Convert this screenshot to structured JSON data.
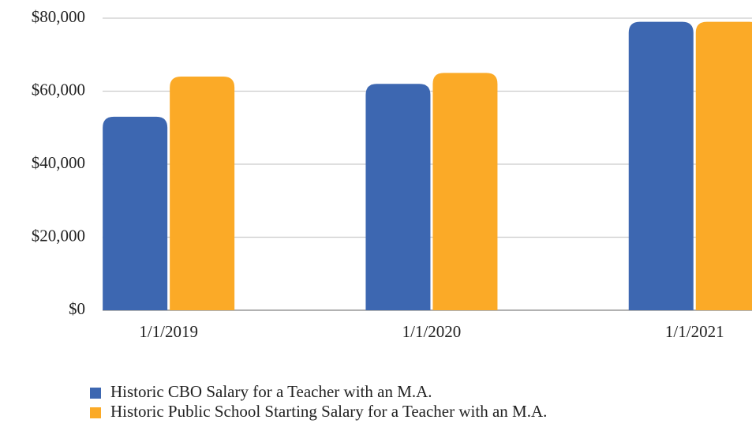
{
  "chart_data": {
    "type": "bar",
    "categories": [
      "1/1/2019",
      "1/1/2020",
      "1/1/2021"
    ],
    "series": [
      {
        "name": "Historic CBO Salary for a Teacher with an M.A.",
        "color": "#3d67b1",
        "values": [
          53000,
          62000,
          79000
        ]
      },
      {
        "name": "Historic Public School Starting Salary for a Teacher with an M.A.",
        "color": "#fbaa27",
        "values": [
          64000,
          65000,
          79000
        ]
      }
    ],
    "ylim": [
      0,
      80000
    ],
    "yticks": [
      {
        "value": 0,
        "label": "$0"
      },
      {
        "value": 20000,
        "label": "$20,000"
      },
      {
        "value": 40000,
        "label": "$40,000"
      },
      {
        "value": 60000,
        "label": "$60,000"
      },
      {
        "value": 80000,
        "label": "$80,000"
      }
    ],
    "grid": true,
    "legend": "bottom"
  }
}
